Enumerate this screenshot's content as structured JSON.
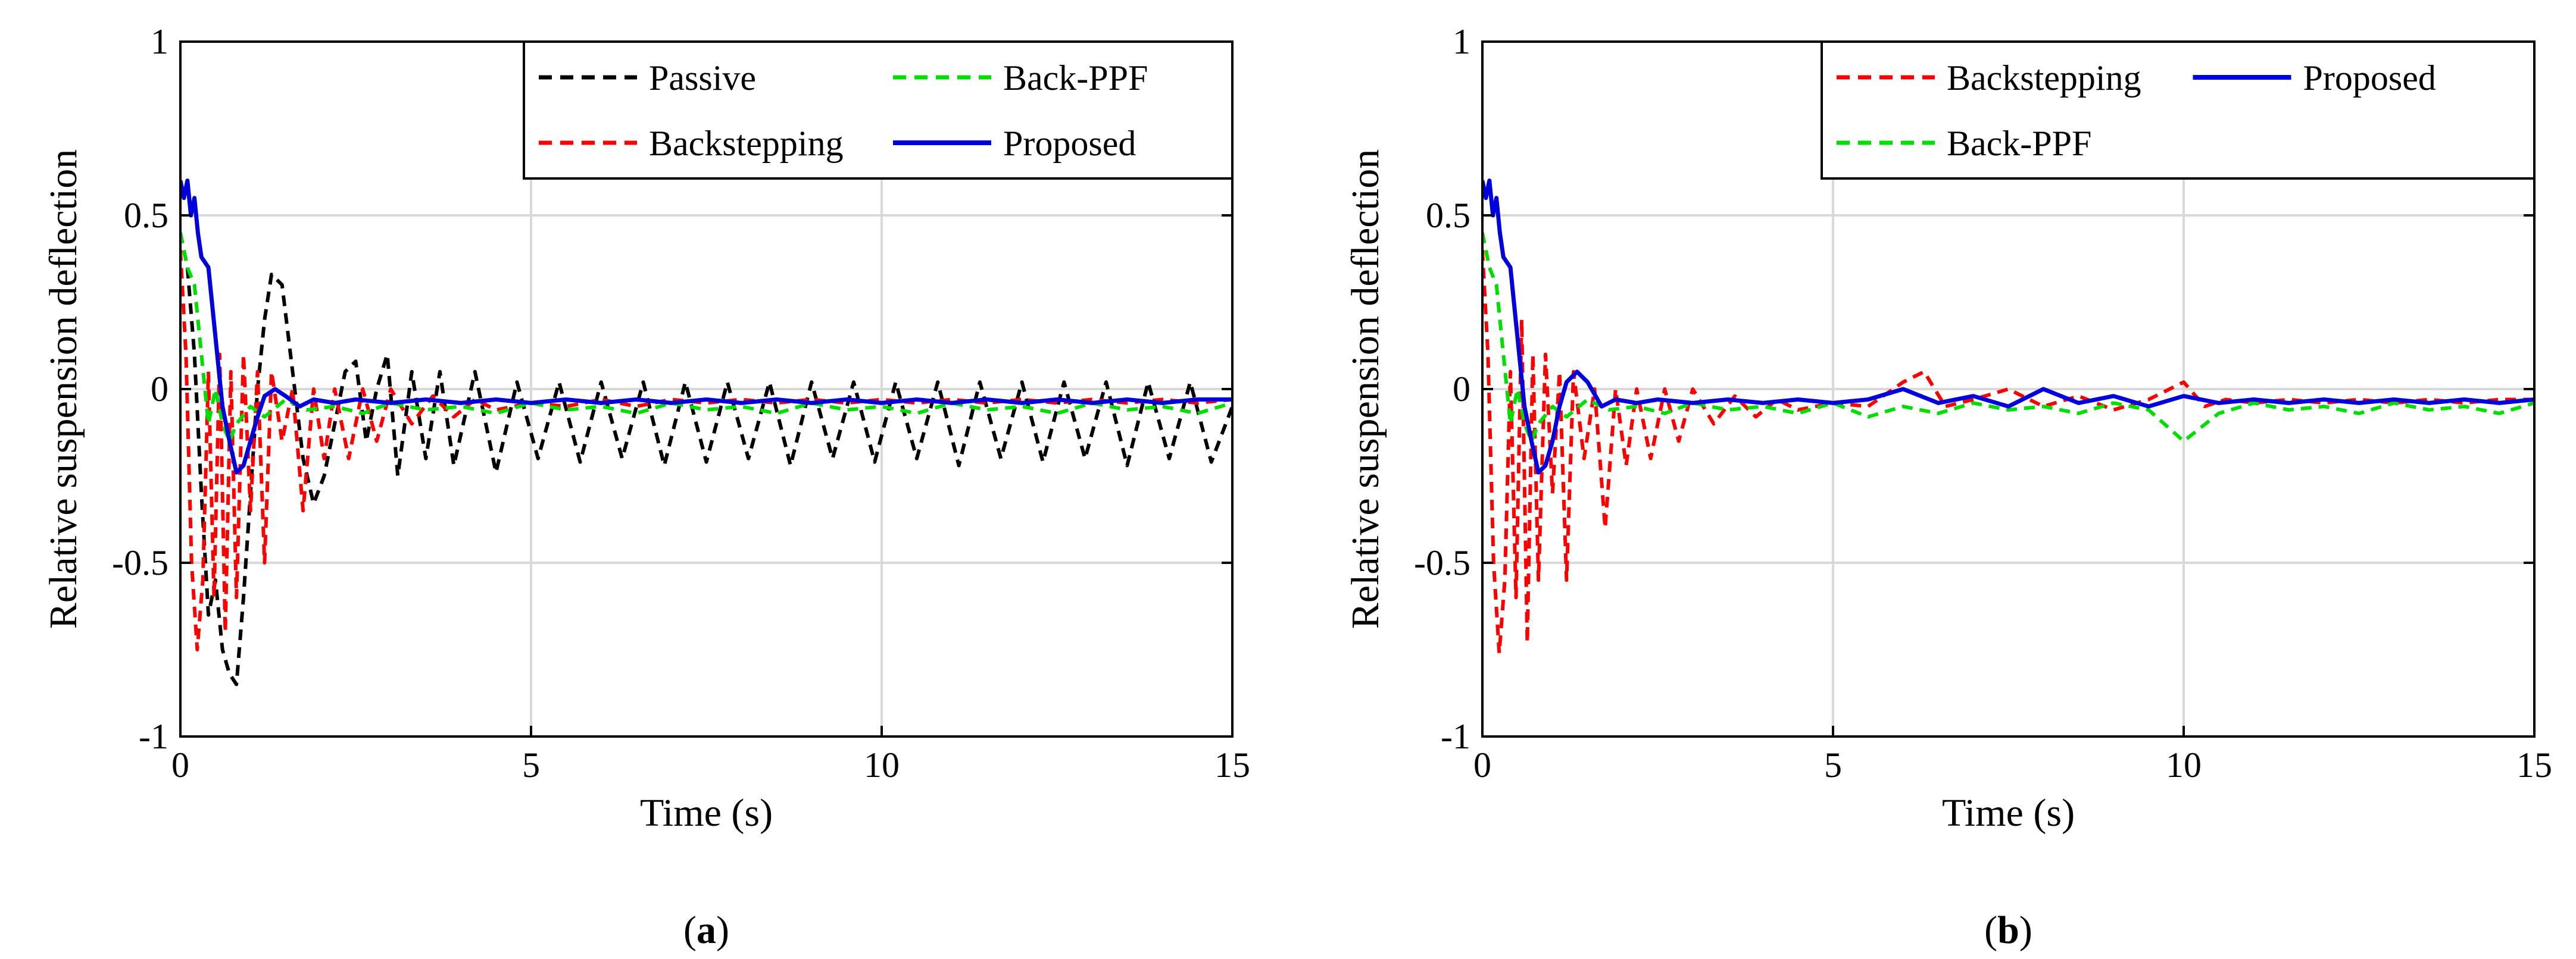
{
  "colors": {
    "passive": "#000000",
    "backstepping": "#ff0000",
    "back_ppf": "#00dd00",
    "proposed": "#0000dd",
    "grid": "#d9d9d9",
    "axes": "#000000"
  },
  "chart_data": [
    {
      "type": "line",
      "panel_label": {
        "open": "(",
        "letter": "a",
        "close": ")"
      },
      "xlabel": "Time (s)",
      "ylabel": "Relative suspension deflection",
      "xlim": [
        0,
        15
      ],
      "ylim": [
        -1,
        1
      ],
      "xticks": [
        0,
        5,
        10,
        15
      ],
      "yticks": [
        -1,
        -0.5,
        0,
        0.5,
        1
      ],
      "xtick_labels": [
        "0",
        "5",
        "10",
        "15"
      ],
      "ytick_labels": [
        "-1",
        "-0.5",
        "0",
        "0.5",
        "1"
      ],
      "grid": true,
      "legend": {
        "location": "top-right",
        "columns": 2,
        "order": [
          "Passive",
          "Back-PPF",
          "Backstepping",
          "Proposed"
        ]
      },
      "series": [
        {
          "name": "Passive",
          "style": "dashed",
          "color": "#000000",
          "x": [
            0.0,
            0.1,
            0.2,
            0.3,
            0.4,
            0.5,
            0.6,
            0.7,
            0.8,
            0.9,
            1.0,
            1.1,
            1.2,
            1.3,
            1.45,
            1.6,
            1.75,
            1.9,
            2.05,
            2.2,
            2.35,
            2.5,
            2.65,
            2.8,
            2.95,
            3.1,
            3.3,
            3.5,
            3.7,
            3.9,
            4.2,
            4.5,
            4.8,
            5.1,
            5.4,
            5.7,
            6.0,
            6.3,
            6.6,
            6.9,
            7.2,
            7.5,
            7.8,
            8.1,
            8.4,
            8.7,
            9.0,
            9.3,
            9.6,
            9.9,
            10.2,
            10.5,
            10.8,
            11.1,
            11.4,
            11.7,
            12.0,
            12.3,
            12.6,
            12.9,
            13.2,
            13.5,
            13.8,
            14.1,
            14.4,
            14.7,
            15.0
          ],
          "y": [
            0.45,
            0.35,
            0.1,
            -0.3,
            -0.65,
            -0.55,
            -0.75,
            -0.82,
            -0.85,
            -0.6,
            -0.3,
            0.0,
            0.2,
            0.33,
            0.3,
            0.05,
            -0.2,
            -0.33,
            -0.25,
            -0.1,
            0.05,
            0.08,
            -0.15,
            0.0,
            0.1,
            -0.25,
            0.05,
            -0.2,
            0.05,
            -0.22,
            0.05,
            -0.24,
            0.02,
            -0.2,
            0.02,
            -0.21,
            0.02,
            -0.2,
            0.02,
            -0.22,
            0.02,
            -0.21,
            0.02,
            -0.2,
            0.02,
            -0.22,
            0.02,
            -0.2,
            0.02,
            -0.21,
            0.02,
            -0.2,
            0.02,
            -0.22,
            0.02,
            -0.2,
            0.02,
            -0.21,
            0.02,
            -0.2,
            0.02,
            -0.22,
            0.02,
            -0.2,
            0.02,
            -0.21,
            -0.05
          ]
        },
        {
          "name": "Backstepping",
          "style": "dashed",
          "color": "#ff0000",
          "x": [
            0.0,
            0.08,
            0.16,
            0.24,
            0.32,
            0.4,
            0.48,
            0.56,
            0.64,
            0.72,
            0.8,
            0.9,
            1.0,
            1.1,
            1.2,
            1.3,
            1.45,
            1.6,
            1.75,
            1.9,
            2.05,
            2.2,
            2.4,
            2.6,
            2.8,
            3.0,
            3.3,
            3.6,
            3.9,
            4.2,
            4.5,
            5.0,
            5.5,
            6.0,
            6.5,
            7.0,
            7.5,
            8.0,
            8.5,
            9.0,
            9.5,
            10.0,
            10.5,
            11.0,
            11.5,
            12.0,
            12.5,
            13.0,
            13.5,
            14.0,
            14.5,
            15.0
          ],
          "y": [
            0.4,
            0.1,
            -0.5,
            -0.75,
            -0.55,
            0.05,
            -0.6,
            0.1,
            -0.7,
            0.05,
            -0.6,
            0.1,
            -0.35,
            0.05,
            -0.5,
            0.05,
            -0.15,
            0.0,
            -0.35,
            0.0,
            -0.2,
            0.0,
            -0.2,
            0.0,
            -0.15,
            0.0,
            -0.1,
            -0.02,
            -0.08,
            -0.03,
            -0.06,
            -0.04,
            -0.05,
            -0.03,
            -0.05,
            -0.03,
            -0.04,
            -0.03,
            -0.04,
            -0.03,
            -0.04,
            -0.03,
            -0.04,
            -0.03,
            -0.04,
            -0.03,
            -0.04,
            -0.03,
            -0.04,
            -0.03,
            -0.04,
            -0.03
          ]
        },
        {
          "name": "Back-PPF",
          "style": "dashed",
          "color": "#00dd00",
          "x": [
            0.0,
            0.1,
            0.2,
            0.3,
            0.4,
            0.5,
            0.6,
            0.7,
            0.8,
            1.0,
            1.2,
            1.5,
            1.8,
            2.2,
            2.6,
            3.0,
            3.5,
            4.0,
            4.5,
            5.0,
            5.5,
            6.0,
            6.5,
            7.0,
            7.5,
            8.0,
            8.5,
            9.0,
            9.5,
            10.0,
            10.5,
            11.0,
            11.5,
            12.0,
            12.5,
            13.0,
            13.5,
            14.0,
            14.5,
            15.0
          ],
          "y": [
            0.45,
            0.35,
            0.3,
            0.1,
            -0.1,
            0.0,
            -0.1,
            -0.15,
            -0.1,
            -0.05,
            -0.08,
            -0.03,
            -0.06,
            -0.05,
            -0.07,
            -0.04,
            -0.06,
            -0.05,
            -0.07,
            -0.04,
            -0.06,
            -0.05,
            -0.07,
            -0.04,
            -0.06,
            -0.05,
            -0.07,
            -0.04,
            -0.06,
            -0.05,
            -0.07,
            -0.04,
            -0.06,
            -0.05,
            -0.07,
            -0.04,
            -0.06,
            -0.05,
            -0.07,
            -0.04
          ]
        },
        {
          "name": "Proposed",
          "style": "solid",
          "color": "#0000dd",
          "x": [
            0.0,
            0.05,
            0.1,
            0.15,
            0.2,
            0.25,
            0.3,
            0.4,
            0.5,
            0.6,
            0.7,
            0.8,
            0.9,
            1.0,
            1.1,
            1.2,
            1.35,
            1.5,
            1.7,
            1.9,
            2.2,
            2.5,
            3.0,
            3.5,
            4.0,
            4.5,
            5.0,
            5.5,
            6.0,
            6.5,
            7.0,
            7.5,
            8.0,
            8.5,
            9.0,
            9.5,
            10.0,
            10.5,
            11.0,
            11.5,
            12.0,
            12.5,
            13.0,
            13.5,
            14.0,
            14.5,
            15.0
          ],
          "y": [
            0.6,
            0.55,
            0.6,
            0.5,
            0.55,
            0.45,
            0.38,
            0.35,
            0.15,
            -0.05,
            -0.15,
            -0.24,
            -0.22,
            -0.15,
            -0.08,
            -0.02,
            0.0,
            -0.02,
            -0.05,
            -0.03,
            -0.04,
            -0.03,
            -0.04,
            -0.03,
            -0.04,
            -0.03,
            -0.04,
            -0.03,
            -0.04,
            -0.03,
            -0.04,
            -0.03,
            -0.04,
            -0.03,
            -0.04,
            -0.03,
            -0.04,
            -0.03,
            -0.04,
            -0.03,
            -0.04,
            -0.03,
            -0.04,
            -0.03,
            -0.04,
            -0.03,
            -0.03
          ]
        }
      ]
    },
    {
      "type": "line",
      "panel_label": {
        "open": "(",
        "letter": "b",
        "close": ")"
      },
      "xlabel": "Time (s)",
      "ylabel": "Relative suspension deflection",
      "xlim": [
        0,
        15
      ],
      "ylim": [
        -1,
        1
      ],
      "xticks": [
        0,
        5,
        10,
        15
      ],
      "yticks": [
        -1,
        -0.5,
        0,
        0.5,
        1
      ],
      "xtick_labels": [
        "0",
        "5",
        "10",
        "15"
      ],
      "ytick_labels": [
        "-1",
        "-0.5",
        "0",
        "0.5",
        "1"
      ],
      "grid": true,
      "legend": {
        "location": "top-right",
        "columns": 2,
        "order": [
          "Backstepping",
          "Proposed",
          "Back-PPF"
        ]
      },
      "series": [
        {
          "name": "Backstepping",
          "style": "dashed",
          "color": "#ff0000",
          "x": [
            0.0,
            0.08,
            0.16,
            0.24,
            0.32,
            0.4,
            0.48,
            0.56,
            0.64,
            0.72,
            0.8,
            0.9,
            1.0,
            1.1,
            1.2,
            1.3,
            1.45,
            1.6,
            1.75,
            1.9,
            2.05,
            2.2,
            2.4,
            2.6,
            2.8,
            3.0,
            3.3,
            3.6,
            3.9,
            4.2,
            4.5,
            5.0,
            5.5,
            6.0,
            6.3,
            6.6,
            7.0,
            7.5,
            8.0,
            8.5,
            9.0,
            9.5,
            10.0,
            10.3,
            10.6,
            11.0,
            11.5,
            12.0,
            12.5,
            13.0,
            13.5,
            14.0,
            14.5,
            15.0
          ],
          "y": [
            0.4,
            0.1,
            -0.5,
            -0.76,
            -0.55,
            0.05,
            -0.6,
            0.2,
            -0.73,
            0.1,
            -0.55,
            0.1,
            -0.3,
            0.05,
            -0.55,
            0.05,
            -0.2,
            0.0,
            -0.4,
            0.0,
            -0.22,
            0.0,
            -0.2,
            0.0,
            -0.15,
            0.0,
            -0.1,
            -0.02,
            -0.08,
            -0.03,
            -0.06,
            -0.04,
            -0.05,
            0.02,
            0.05,
            -0.05,
            -0.03,
            0.0,
            -0.05,
            -0.02,
            -0.06,
            -0.03,
            0.02,
            -0.05,
            -0.03,
            -0.04,
            -0.03,
            -0.04,
            -0.03,
            -0.04,
            -0.03,
            -0.04,
            -0.03,
            -0.03
          ]
        },
        {
          "name": "Back-PPF",
          "style": "dashed",
          "color": "#00dd00",
          "x": [
            0.0,
            0.1,
            0.2,
            0.3,
            0.4,
            0.5,
            0.6,
            0.7,
            0.8,
            1.0,
            1.2,
            1.5,
            1.8,
            2.2,
            2.6,
            3.0,
            3.5,
            4.0,
            4.5,
            5.0,
            5.5,
            6.0,
            6.5,
            7.0,
            7.5,
            8.0,
            8.5,
            9.0,
            9.5,
            10.0,
            10.5,
            11.0,
            11.5,
            12.0,
            12.5,
            13.0,
            13.5,
            14.0,
            14.5,
            15.0
          ],
          "y": [
            0.45,
            0.35,
            0.3,
            0.1,
            -0.1,
            0.0,
            -0.1,
            -0.15,
            -0.1,
            -0.05,
            -0.08,
            -0.03,
            -0.06,
            -0.05,
            -0.07,
            -0.04,
            -0.06,
            -0.05,
            -0.07,
            -0.04,
            -0.08,
            -0.05,
            -0.07,
            -0.04,
            -0.06,
            -0.05,
            -0.07,
            -0.04,
            -0.06,
            -0.15,
            -0.07,
            -0.04,
            -0.06,
            -0.05,
            -0.07,
            -0.04,
            -0.06,
            -0.05,
            -0.07,
            -0.04
          ]
        },
        {
          "name": "Proposed",
          "style": "solid",
          "color": "#0000dd",
          "x": [
            0.0,
            0.05,
            0.1,
            0.15,
            0.2,
            0.25,
            0.3,
            0.4,
            0.5,
            0.6,
            0.7,
            0.8,
            0.9,
            1.0,
            1.1,
            1.2,
            1.35,
            1.5,
            1.7,
            1.9,
            2.2,
            2.5,
            3.0,
            3.5,
            4.0,
            4.5,
            5.0,
            5.5,
            6.0,
            6.5,
            7.0,
            7.5,
            8.0,
            8.5,
            9.0,
            9.5,
            10.0,
            10.5,
            11.0,
            11.5,
            12.0,
            12.5,
            13.0,
            13.5,
            14.0,
            14.5,
            15.0
          ],
          "y": [
            0.6,
            0.55,
            0.6,
            0.5,
            0.55,
            0.45,
            0.38,
            0.35,
            0.15,
            -0.05,
            -0.15,
            -0.24,
            -0.22,
            -0.15,
            -0.05,
            0.02,
            0.05,
            0.02,
            -0.05,
            -0.03,
            -0.04,
            -0.03,
            -0.04,
            -0.03,
            -0.04,
            -0.03,
            -0.04,
            -0.03,
            0.0,
            -0.04,
            -0.02,
            -0.05,
            0.0,
            -0.04,
            -0.02,
            -0.05,
            -0.02,
            -0.04,
            -0.03,
            -0.04,
            -0.03,
            -0.04,
            -0.03,
            -0.04,
            -0.03,
            -0.04,
            -0.03
          ]
        }
      ]
    }
  ]
}
